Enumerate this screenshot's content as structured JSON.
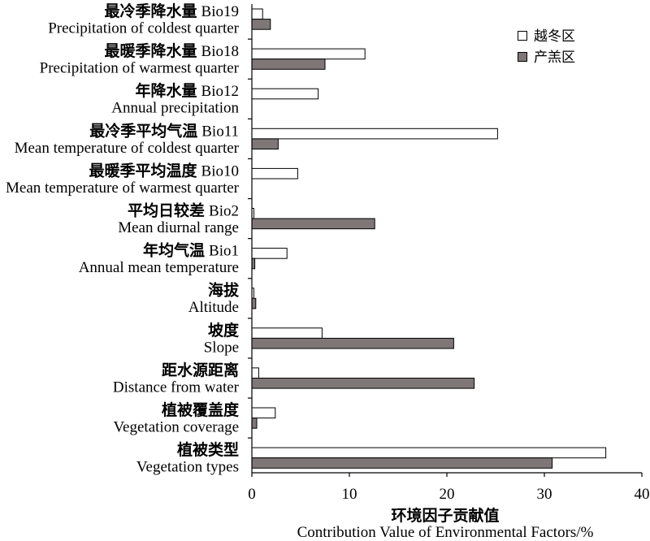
{
  "chart_data": {
    "type": "bar",
    "orientation": "horizontal",
    "categories": [
      {
        "zh": "最冷季降水量",
        "code": "Bio19",
        "en": "Precipitation of coldest quarter"
      },
      {
        "zh": "最暖季降水量",
        "code": "Bio18",
        "en": "Precipitation of warmest quarter"
      },
      {
        "zh": "年降水量",
        "code": "Bio12",
        "en": "Annual precipitation"
      },
      {
        "zh": "最冷季平均气温",
        "code": "Bio11",
        "en": "Mean temperature of coldest quarter"
      },
      {
        "zh": "最暖季平均温度",
        "code": "Bio10",
        "en": "Mean temperature of warmest quarter"
      },
      {
        "zh": "平均日较差",
        "code": "Bio2",
        "en": "Mean diurnal range"
      },
      {
        "zh": "年均气温",
        "code": "Bio1",
        "en": "Annual mean temperature"
      },
      {
        "zh": "海拔",
        "en": "Altitude"
      },
      {
        "zh": "坡度",
        "en": "Slope"
      },
      {
        "zh": "距水源距离",
        "en": "Distance from water"
      },
      {
        "zh": "植被覆盖度",
        "en": "Vegetation coverage"
      },
      {
        "zh": "植被类型",
        "en": "Vegetation types"
      }
    ],
    "series": [
      {
        "name": "越冬区",
        "color": "#ffffff",
        "values": [
          1.1,
          11.6,
          6.8,
          25.2,
          4.7,
          0.2,
          3.6,
          0.2,
          7.2,
          0.7,
          2.4,
          36.3
        ]
      },
      {
        "name": "产羔区",
        "color": "#7f7777",
        "values": [
          1.9,
          7.5,
          0,
          2.7,
          0,
          12.6,
          0.3,
          0.4,
          20.7,
          22.8,
          0.5,
          30.8
        ]
      }
    ],
    "xlabel": {
      "zh": "环境因子贡献值",
      "en": "Contribution Value of Environmental Factors/%"
    },
    "xlim": [
      0,
      40
    ],
    "xticks": [
      0,
      10,
      20,
      30,
      40
    ],
    "legend": "top-right",
    "grid": false,
    "bar_outline_color": "#000000"
  }
}
